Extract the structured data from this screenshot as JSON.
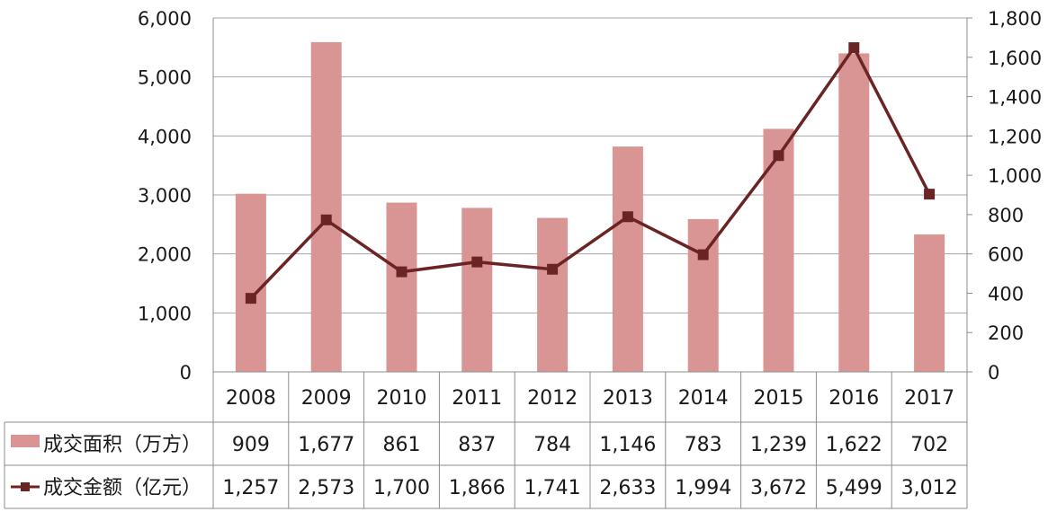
{
  "chart_data": {
    "type": "bar",
    "categories": [
      "2008",
      "2009",
      "2010",
      "2011",
      "2012",
      "2013",
      "2014",
      "2015",
      "2016",
      "2017"
    ],
    "series": [
      {
        "name": "成交面积（万方）",
        "type": "bar",
        "axis": "left",
        "color": "#d99594",
        "values": [
          3020,
          5590,
          2870,
          2780,
          2610,
          3820,
          2590,
          4120,
          5400,
          2330
        ],
        "table_labels": [
          "909",
          "1,677",
          "861",
          "837",
          "784",
          "1,146",
          "783",
          "1,239",
          "1,622",
          "702"
        ]
      },
      {
        "name": "成交金额（亿元）",
        "type": "line",
        "axis": "right",
        "color": "#6b2424",
        "values": [
          374,
          773,
          509,
          559,
          522,
          789,
          596,
          1100,
          1649,
          904
        ],
        "table_labels": [
          "1,257",
          "2,573",
          "1,700",
          "1,866",
          "1,741",
          "2,633",
          "1,994",
          "3,672",
          "5,499",
          "3,012"
        ]
      }
    ],
    "y_left": {
      "min": 0,
      "max": 6000,
      "ticks": [
        "0",
        "1,000",
        "2,000",
        "3,000",
        "4,000",
        "5,000",
        "6,000"
      ]
    },
    "y_right": {
      "min": 0,
      "max": 1800,
      "ticks": [
        "0",
        "200",
        "400",
        "600",
        "800",
        "1,000",
        "1,200",
        "1,400",
        "1,600",
        "1,800"
      ]
    },
    "grid": true,
    "legend": "data-table"
  }
}
